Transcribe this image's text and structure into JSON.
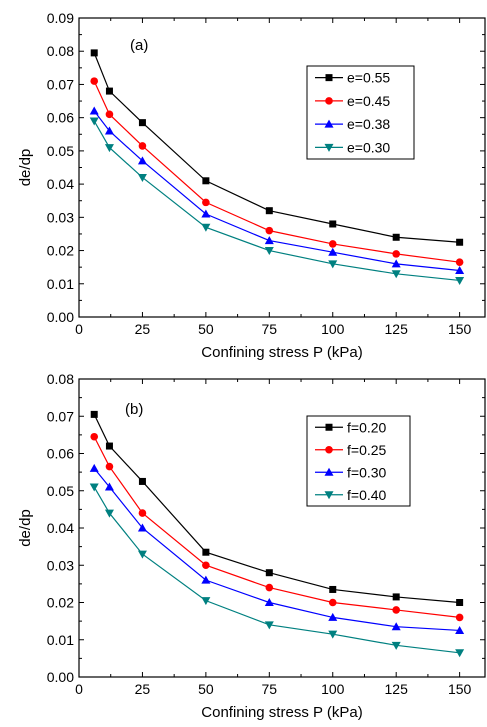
{
  "chart_data": [
    {
      "type": "line",
      "panel_label": "(a)",
      "xlabel": "Confining stress P (kPa)",
      "ylabel": "de/dp",
      "xlim": [
        0,
        160
      ],
      "ylim": [
        0,
        0.09
      ],
      "xticks": [
        0,
        25,
        50,
        75,
        100,
        125,
        150
      ],
      "yticks": [
        "0.00",
        "0.01",
        "0.02",
        "0.03",
        "0.04",
        "0.05",
        "0.06",
        "0.07",
        "0.08",
        "0.09"
      ],
      "legend_position": "right",
      "x": [
        6,
        12,
        25,
        50,
        75,
        100,
        125,
        150
      ],
      "series": [
        {
          "name": "e=0.55",
          "color": "#000000",
          "marker": "square",
          "values": [
            0.0795,
            0.068,
            0.0585,
            0.041,
            0.032,
            0.028,
            0.024,
            0.0225
          ]
        },
        {
          "name": "e=0.45",
          "color": "#ff0000",
          "marker": "circle",
          "values": [
            0.071,
            0.061,
            0.0515,
            0.0345,
            0.026,
            0.022,
            0.019,
            0.0165
          ]
        },
        {
          "name": "e=0.38",
          "color": "#0000ff",
          "marker": "triangle-up",
          "values": [
            0.062,
            0.056,
            0.047,
            0.031,
            0.023,
            0.0195,
            0.016,
            0.014
          ]
        },
        {
          "name": "e=0.30",
          "color": "#008080",
          "marker": "triangle-down",
          "values": [
            0.059,
            0.051,
            0.042,
            0.027,
            0.02,
            0.016,
            0.013,
            0.011
          ]
        }
      ]
    },
    {
      "type": "line",
      "panel_label": "(b)",
      "xlabel": "Confining stress P (kPa)",
      "ylabel": "de/dp",
      "xlim": [
        0,
        160
      ],
      "ylim": [
        0,
        0.08
      ],
      "xticks": [
        0,
        25,
        50,
        75,
        100,
        125,
        150
      ],
      "yticks": [
        "0.00",
        "0.01",
        "0.02",
        "0.03",
        "0.04",
        "0.05",
        "0.06",
        "0.07",
        "0.08"
      ],
      "legend_position": "right",
      "x": [
        6,
        12,
        25,
        50,
        75,
        100,
        125,
        150
      ],
      "series": [
        {
          "name": "f=0.20",
          "color": "#000000",
          "marker": "square",
          "values": [
            0.0705,
            0.062,
            0.0525,
            0.0335,
            0.028,
            0.0235,
            0.0215,
            0.02
          ]
        },
        {
          "name": "f=0.25",
          "color": "#ff0000",
          "marker": "circle",
          "values": [
            0.0645,
            0.0565,
            0.044,
            0.03,
            0.024,
            0.02,
            0.018,
            0.016
          ]
        },
        {
          "name": "f=0.30",
          "color": "#0000ff",
          "marker": "triangle-up",
          "values": [
            0.056,
            0.051,
            0.04,
            0.026,
            0.02,
            0.016,
            0.0135,
            0.0125
          ]
        },
        {
          "name": "f=0.40",
          "color": "#008080",
          "marker": "triangle-down",
          "values": [
            0.051,
            0.044,
            0.033,
            0.0205,
            0.014,
            0.0115,
            0.0085,
            0.0065
          ]
        }
      ]
    }
  ]
}
